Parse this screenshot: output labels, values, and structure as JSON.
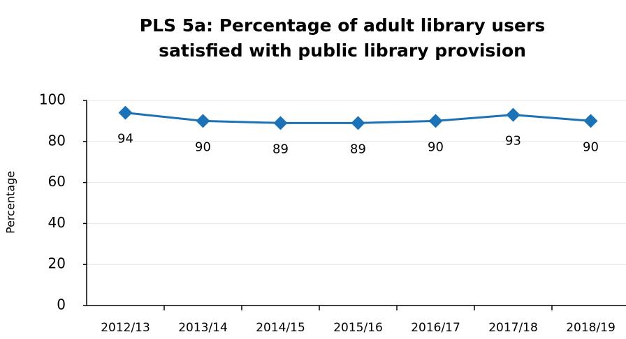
{
  "chart_data": {
    "type": "line",
    "title": [
      "PLS 5a: Percentage of adult library users",
      "satisfied with public library provision"
    ],
    "y_label": "Percentage",
    "categories": [
      "2012/13",
      "2013/14",
      "2014/15",
      "2015/16",
      "2016/17",
      "2017/18",
      "2018/19"
    ],
    "series": [
      {
        "name": "Percentage",
        "color": "#1b72b6",
        "values": [
          94,
          90,
          89,
          89,
          90,
          93,
          90
        ]
      }
    ],
    "ylim": [
      0,
      100
    ],
    "yticks": [
      0,
      20,
      40,
      60,
      80,
      100
    ],
    "grid": true
  }
}
